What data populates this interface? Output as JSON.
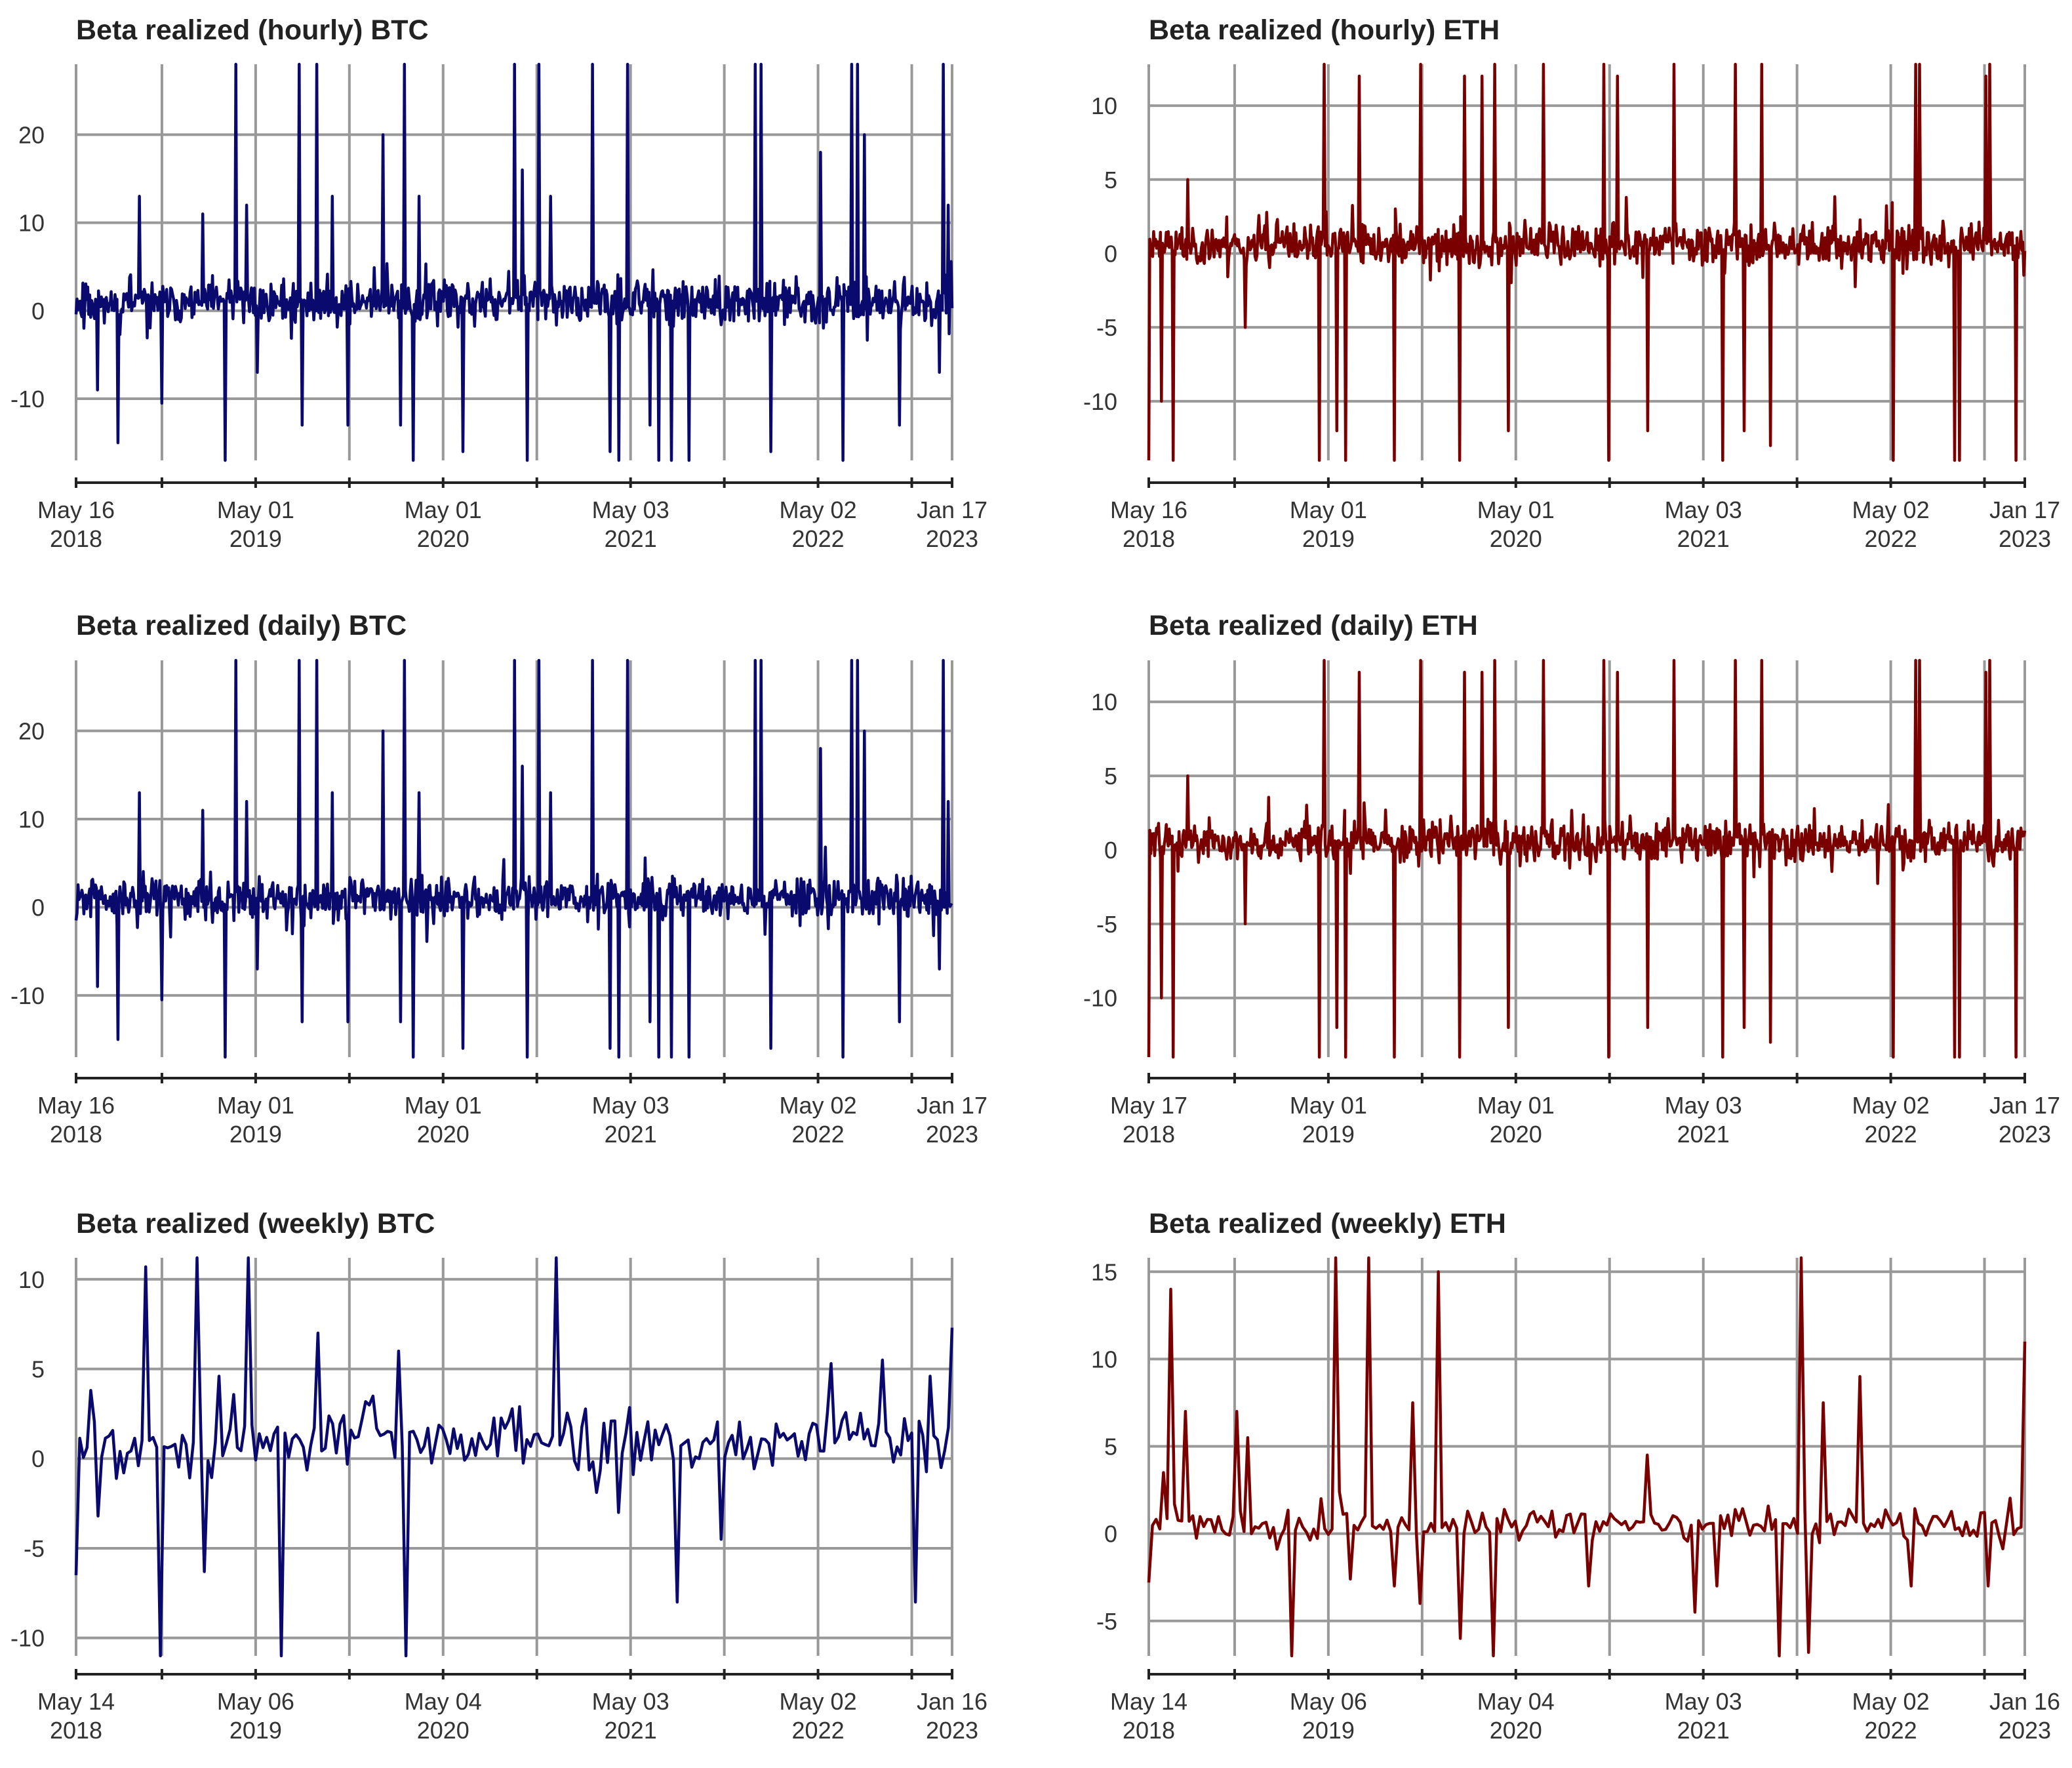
{
  "chart_data": [
    {
      "type": "line",
      "title": "Beta realized (hourly) BTC",
      "color": "#0a0a6e",
      "ylim": [
        -17,
        28
      ],
      "yticks": [
        -10,
        0,
        10,
        20
      ],
      "xlim": [
        0,
        1
      ],
      "xgrid": [
        0,
        0.098,
        0.205,
        0.312,
        0.419,
        0.526,
        0.633,
        0.74,
        0.847,
        0.954,
        1.0
      ],
      "xtick_labels": [
        {
          "x": 0,
          "lines": [
            "May 16",
            "2018"
          ]
        },
        {
          "x": 0.205,
          "lines": [
            "May 01",
            "2019"
          ]
        },
        {
          "x": 0.419,
          "lines": [
            "May 01",
            "2020"
          ]
        },
        {
          "x": 0.633,
          "lines": [
            "May 03",
            "2021"
          ]
        },
        {
          "x": 0.847,
          "lines": [
            "May 02",
            "2022"
          ]
        },
        {
          "x": 1.0,
          "lines": [
            "Jan 17",
            "2023"
          ]
        }
      ],
      "n": 900,
      "seed": 11,
      "base": 1.0,
      "noise": 1.6,
      "spikes": [
        [
          0.025,
          -9
        ],
        [
          0.048,
          -15
        ],
        [
          0.072,
          13
        ],
        [
          0.098,
          -10.5
        ],
        [
          0.145,
          11
        ],
        [
          0.17,
          -17
        ],
        [
          0.182,
          28
        ],
        [
          0.195,
          12
        ],
        [
          0.207,
          -7
        ],
        [
          0.255,
          28
        ],
        [
          0.258,
          -13
        ],
        [
          0.275,
          28
        ],
        [
          0.292,
          13
        ],
        [
          0.31,
          -13
        ],
        [
          0.35,
          20
        ],
        [
          0.37,
          -13
        ],
        [
          0.375,
          28
        ],
        [
          0.385,
          -17
        ],
        [
          0.392,
          13
        ],
        [
          0.442,
          -16
        ],
        [
          0.5,
          28
        ],
        [
          0.51,
          16
        ],
        [
          0.515,
          -17
        ],
        [
          0.528,
          28
        ],
        [
          0.542,
          13
        ],
        [
          0.59,
          28
        ],
        [
          0.61,
          -16
        ],
        [
          0.62,
          -17
        ],
        [
          0.63,
          28
        ],
        [
          0.655,
          -13
        ],
        [
          0.665,
          -17
        ],
        [
          0.68,
          -17
        ],
        [
          0.7,
          -17
        ],
        [
          0.775,
          28
        ],
        [
          0.782,
          28
        ],
        [
          0.793,
          -16
        ],
        [
          0.85,
          18
        ],
        [
          0.875,
          -17
        ],
        [
          0.885,
          28
        ],
        [
          0.892,
          28
        ],
        [
          0.9,
          20
        ],
        [
          0.94,
          -13
        ],
        [
          0.985,
          -7
        ],
        [
          0.99,
          28
        ],
        [
          0.995,
          12
        ]
      ]
    },
    {
      "type": "line",
      "title": "Beta realized (hourly) ETH",
      "color": "#7a0000",
      "ylim": [
        -14,
        12.8
      ],
      "yticks": [
        -10,
        -5,
        0,
        5,
        10
      ],
      "xlim": [
        0,
        1
      ],
      "xgrid": [
        0,
        0.098,
        0.205,
        0.312,
        0.419,
        0.526,
        0.633,
        0.74,
        0.847,
        0.954,
        1.0
      ],
      "xtick_labels": [
        {
          "x": 0,
          "lines": [
            "May 16",
            "2018"
          ]
        },
        {
          "x": 0.205,
          "lines": [
            "May 01",
            "2019"
          ]
        },
        {
          "x": 0.419,
          "lines": [
            "May 01",
            "2020"
          ]
        },
        {
          "x": 0.633,
          "lines": [
            "May 03",
            "2021"
          ]
        },
        {
          "x": 0.847,
          "lines": [
            "May 02",
            "2022"
          ]
        },
        {
          "x": 1.0,
          "lines": [
            "Jan 17",
            "2023"
          ]
        }
      ],
      "n": 900,
      "seed": 23,
      "base": 0.6,
      "noise": 0.9,
      "spikes": [
        [
          0.0,
          -14
        ],
        [
          0.015,
          -10
        ],
        [
          0.028,
          -14
        ],
        [
          0.045,
          5
        ],
        [
          0.11,
          -5
        ],
        [
          0.195,
          -14
        ],
        [
          0.2,
          12.8
        ],
        [
          0.215,
          -12
        ],
        [
          0.225,
          -14
        ],
        [
          0.24,
          12
        ],
        [
          0.28,
          -14
        ],
        [
          0.31,
          12.8
        ],
        [
          0.355,
          -14
        ],
        [
          0.36,
          12
        ],
        [
          0.38,
          12
        ],
        [
          0.395,
          12.8
        ],
        [
          0.41,
          -12
        ],
        [
          0.45,
          12.8
        ],
        [
          0.52,
          12.8
        ],
        [
          0.525,
          -14
        ],
        [
          0.535,
          12
        ],
        [
          0.57,
          -12
        ],
        [
          0.6,
          12.8
        ],
        [
          0.655,
          -14
        ],
        [
          0.67,
          12.8
        ],
        [
          0.68,
          -12
        ],
        [
          0.7,
          12.8
        ],
        [
          0.71,
          -13
        ],
        [
          0.85,
          -14
        ],
        [
          0.875,
          12.8
        ],
        [
          0.88,
          12.8
        ],
        [
          0.92,
          -14
        ],
        [
          0.925,
          -14
        ],
        [
          0.955,
          12
        ],
        [
          0.96,
          12.8
        ],
        [
          0.99,
          -14
        ]
      ]
    },
    {
      "type": "line",
      "title": "Beta realized (daily) BTC",
      "color": "#0a0a6e",
      "ylim": [
        -17,
        28
      ],
      "yticks": [
        -10,
        0,
        10,
        20
      ],
      "xlim": [
        0,
        1
      ],
      "xgrid": [
        0,
        0.098,
        0.205,
        0.312,
        0.419,
        0.526,
        0.633,
        0.74,
        0.847,
        0.954,
        1.0
      ],
      "xtick_labels": [
        {
          "x": 0,
          "lines": [
            "May 16",
            "2018"
          ]
        },
        {
          "x": 0.205,
          "lines": [
            "May 01",
            "2019"
          ]
        },
        {
          "x": 0.419,
          "lines": [
            "May 01",
            "2020"
          ]
        },
        {
          "x": 0.633,
          "lines": [
            "May 03",
            "2021"
          ]
        },
        {
          "x": 0.847,
          "lines": [
            "May 02",
            "2022"
          ]
        },
        {
          "x": 1.0,
          "lines": [
            "Jan 17",
            "2023"
          ]
        }
      ],
      "n": 900,
      "seed": 31,
      "base": 1.0,
      "noise": 1.6,
      "spikes": [
        [
          0.025,
          -9
        ],
        [
          0.048,
          -15
        ],
        [
          0.072,
          13
        ],
        [
          0.098,
          -10.5
        ],
        [
          0.145,
          11
        ],
        [
          0.17,
          -17
        ],
        [
          0.182,
          28
        ],
        [
          0.195,
          12
        ],
        [
          0.207,
          -7
        ],
        [
          0.255,
          28
        ],
        [
          0.258,
          -13
        ],
        [
          0.275,
          28
        ],
        [
          0.292,
          13
        ],
        [
          0.31,
          -13
        ],
        [
          0.35,
          20
        ],
        [
          0.37,
          -13
        ],
        [
          0.375,
          28
        ],
        [
          0.385,
          -17
        ],
        [
          0.392,
          13
        ],
        [
          0.442,
          -16
        ],
        [
          0.5,
          28
        ],
        [
          0.51,
          16
        ],
        [
          0.515,
          -17
        ],
        [
          0.528,
          28
        ],
        [
          0.542,
          13
        ],
        [
          0.59,
          28
        ],
        [
          0.61,
          -16
        ],
        [
          0.62,
          -17
        ],
        [
          0.63,
          28
        ],
        [
          0.655,
          -13
        ],
        [
          0.665,
          -17
        ],
        [
          0.68,
          -17
        ],
        [
          0.7,
          -17
        ],
        [
          0.775,
          28
        ],
        [
          0.782,
          28
        ],
        [
          0.793,
          -16
        ],
        [
          0.85,
          18
        ],
        [
          0.875,
          -17
        ],
        [
          0.885,
          28
        ],
        [
          0.892,
          28
        ],
        [
          0.9,
          20
        ],
        [
          0.94,
          -13
        ],
        [
          0.985,
          -7
        ],
        [
          0.99,
          28
        ],
        [
          0.995,
          12
        ]
      ]
    },
    {
      "type": "line",
      "title": "Beta realized (daily) ETH",
      "color": "#7a0000",
      "ylim": [
        -14,
        12.8
      ],
      "yticks": [
        -10,
        -5,
        0,
        5,
        10
      ],
      "xlim": [
        0,
        1
      ],
      "xgrid": [
        0,
        0.098,
        0.205,
        0.312,
        0.419,
        0.526,
        0.633,
        0.74,
        0.847,
        0.954,
        1.0
      ],
      "xtick_labels": [
        {
          "x": 0,
          "lines": [
            "May 17",
            "2018"
          ]
        },
        {
          "x": 0.205,
          "lines": [
            "May 01",
            "2019"
          ]
        },
        {
          "x": 0.419,
          "lines": [
            "May 01",
            "2020"
          ]
        },
        {
          "x": 0.633,
          "lines": [
            "May 03",
            "2021"
          ]
        },
        {
          "x": 0.847,
          "lines": [
            "May 02",
            "2022"
          ]
        },
        {
          "x": 1.0,
          "lines": [
            "Jan 17",
            "2023"
          ]
        }
      ],
      "n": 900,
      "seed": 47,
      "base": 0.6,
      "noise": 0.9,
      "spikes": [
        [
          0.0,
          -14
        ],
        [
          0.015,
          -10
        ],
        [
          0.028,
          -14
        ],
        [
          0.045,
          5
        ],
        [
          0.11,
          -5
        ],
        [
          0.195,
          -14
        ],
        [
          0.2,
          12.8
        ],
        [
          0.215,
          -12
        ],
        [
          0.225,
          -14
        ],
        [
          0.24,
          12
        ],
        [
          0.28,
          -14
        ],
        [
          0.31,
          12.8
        ],
        [
          0.355,
          -14
        ],
        [
          0.36,
          12
        ],
        [
          0.38,
          12
        ],
        [
          0.395,
          12.8
        ],
        [
          0.41,
          -12
        ],
        [
          0.45,
          12.8
        ],
        [
          0.52,
          12.8
        ],
        [
          0.525,
          -14
        ],
        [
          0.535,
          12
        ],
        [
          0.57,
          -12
        ],
        [
          0.6,
          12.8
        ],
        [
          0.655,
          -14
        ],
        [
          0.67,
          12.8
        ],
        [
          0.68,
          -12
        ],
        [
          0.7,
          12.8
        ],
        [
          0.71,
          -13
        ],
        [
          0.85,
          -14
        ],
        [
          0.875,
          12.8
        ],
        [
          0.88,
          12.8
        ],
        [
          0.92,
          -14
        ],
        [
          0.925,
          -14
        ],
        [
          0.955,
          12
        ],
        [
          0.96,
          12.8
        ],
        [
          0.99,
          -14
        ]
      ]
    },
    {
      "type": "line",
      "title": "Beta realized (weekly) BTC",
      "color": "#0a0a6e",
      "ylim": [
        -11,
        11.2
      ],
      "yticks": [
        -10,
        -5,
        0,
        5,
        10
      ],
      "xlim": [
        0,
        1
      ],
      "xgrid": [
        0,
        0.098,
        0.205,
        0.312,
        0.419,
        0.526,
        0.633,
        0.74,
        0.847,
        0.954,
        1.0
      ],
      "xtick_labels": [
        {
          "x": 0,
          "lines": [
            "May 14",
            "2018"
          ]
        },
        {
          "x": 0.205,
          "lines": [
            "May 06",
            "2019"
          ]
        },
        {
          "x": 0.419,
          "lines": [
            "May 04",
            "2020"
          ]
        },
        {
          "x": 0.633,
          "lines": [
            "May 03",
            "2021"
          ]
        },
        {
          "x": 0.847,
          "lines": [
            "May 02",
            "2022"
          ]
        },
        {
          "x": 1.0,
          "lines": [
            "Jan 16",
            "2023"
          ]
        }
      ],
      "n": 240,
      "seed": 5,
      "base": 1.0,
      "noise": 1.3,
      "spikes": [
        [
          0.0,
          -6.5
        ],
        [
          0.017,
          3.8
        ],
        [
          0.025,
          -3.2
        ],
        [
          0.08,
          10.7
        ],
        [
          0.098,
          -11
        ],
        [
          0.14,
          11.2
        ],
        [
          0.148,
          -6.3
        ],
        [
          0.162,
          4.6
        ],
        [
          0.198,
          11.2
        ],
        [
          0.235,
          -11
        ],
        [
          0.275,
          7
        ],
        [
          0.37,
          6
        ],
        [
          0.375,
          -11
        ],
        [
          0.548,
          11.2
        ],
        [
          0.62,
          -3
        ],
        [
          0.685,
          -8
        ],
        [
          0.735,
          4.1
        ],
        [
          0.738,
          -4.5
        ],
        [
          0.863,
          5.3
        ],
        [
          0.92,
          5.5
        ],
        [
          0.96,
          -8
        ],
        [
          0.976,
          4.6
        ],
        [
          0.987,
          -0.5
        ],
        [
          1.0,
          7.3
        ]
      ]
    },
    {
      "type": "line",
      "title": "Beta realized (weekly) ETH",
      "color": "#7a0000",
      "ylim": [
        -7,
        15.8
      ],
      "yticks": [
        -5,
        0,
        5,
        10,
        15
      ],
      "xlim": [
        0,
        1
      ],
      "xgrid": [
        0,
        0.098,
        0.205,
        0.312,
        0.419,
        0.526,
        0.633,
        0.74,
        0.847,
        0.954,
        1.0
      ],
      "xtick_labels": [
        {
          "x": 0,
          "lines": [
            "May 14",
            "2018"
          ]
        },
        {
          "x": 0.205,
          "lines": [
            "May 06",
            "2019"
          ]
        },
        {
          "x": 0.419,
          "lines": [
            "May 04",
            "2020"
          ]
        },
        {
          "x": 0.633,
          "lines": [
            "May 03",
            "2021"
          ]
        },
        {
          "x": 0.847,
          "lines": [
            "May 02",
            "2022"
          ]
        },
        {
          "x": 1.0,
          "lines": [
            "Jan 16",
            "2023"
          ]
        }
      ],
      "n": 240,
      "seed": 9,
      "base": 0.5,
      "noise": 0.6,
      "spikes": [
        [
          0.0,
          -2.8
        ],
        [
          0.015,
          3.5
        ],
        [
          0.025,
          14
        ],
        [
          0.04,
          7
        ],
        [
          0.1,
          7
        ],
        [
          0.115,
          5.5
        ],
        [
          0.165,
          -7
        ],
        [
          0.195,
          2
        ],
        [
          0.212,
          15.8
        ],
        [
          0.23,
          -2.6
        ],
        [
          0.25,
          15.8
        ],
        [
          0.28,
          -3
        ],
        [
          0.3,
          7.5
        ],
        [
          0.31,
          -4
        ],
        [
          0.33,
          15
        ],
        [
          0.355,
          -6
        ],
        [
          0.395,
          -7
        ],
        [
          0.5,
          -3
        ],
        [
          0.57,
          4.5
        ],
        [
          0.625,
          -4.5
        ],
        [
          0.65,
          -3
        ],
        [
          0.72,
          -7
        ],
        [
          0.745,
          15.8
        ],
        [
          0.755,
          -6.8
        ],
        [
          0.77,
          7.5
        ],
        [
          0.81,
          9
        ],
        [
          0.87,
          -3
        ],
        [
          0.96,
          -3
        ],
        [
          1.0,
          11
        ]
      ]
    }
  ]
}
